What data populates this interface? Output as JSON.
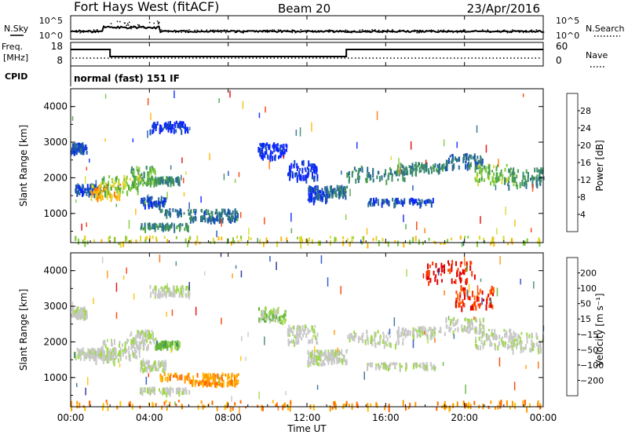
{
  "header": {
    "title": "Fort Hays West (fitACF)",
    "beam": "Beam 20",
    "date": "23/Apr/2016"
  },
  "summary_panels": {
    "nsky_label": "N.Sky",
    "nsky_ticks": [
      "10^5",
      "10^0"
    ],
    "nsearch_label": "N.Search",
    "nsearch_ticks": [
      "10^5",
      "10^0"
    ],
    "freq_label_1": "Freq.",
    "freq_label_2": "[MHz]",
    "freq_ticks": [
      "18",
      "8"
    ],
    "nave_label": "Nave",
    "nave_ticks": [
      "60",
      "0"
    ],
    "cpid_label": "CPID",
    "cpid_text": "normal (fast) 151 IF"
  },
  "chart_data": [
    {
      "type": "heatmap",
      "name_printed": "",
      "ylabel": "Slant Range [km]",
      "xlabel": "",
      "y_ticks": [
        "1000",
        "2000",
        "3000",
        "4000"
      ],
      "ylim": [
        180,
        4500
      ],
      "xlim_hours": [
        0,
        24
      ],
      "colorbar": {
        "label": "Power [dB]",
        "ticks": [
          "4",
          "8",
          "12",
          "16",
          "20",
          "24",
          "28"
        ],
        "colors": [
          "#0a24ff",
          "#1a50b4",
          "#2a6e91",
          "#3c8a6a",
          "#4ba448",
          "#7ec93a",
          "#d9d932",
          "#ffb600",
          "#ff7a00",
          "#ff3a00",
          "#e10000"
        ]
      },
      "regions": [
        {
          "t": [
            0.0,
            0.8
          ],
          "r": [
            2750,
            3000
          ],
          "level": 1
        },
        {
          "t": [
            0.2,
            1.5
          ],
          "r": [
            1600,
            1850
          ],
          "level": 1
        },
        {
          "t": [
            1.0,
            2.5
          ],
          "r": [
            1450,
            1850
          ],
          "level": 7
        },
        {
          "t": [
            1.5,
            3.5
          ],
          "r": [
            1600,
            2100
          ],
          "level": 5
        },
        {
          "t": [
            3.0,
            4.3
          ],
          "r": [
            1850,
            2350
          ],
          "level": 4
        },
        {
          "t": [
            3.5,
            4.8
          ],
          "r": [
            1250,
            1500
          ],
          "level": 1
        },
        {
          "t": [
            4.3,
            5.5
          ],
          "r": [
            1900,
            2050
          ],
          "level": 3
        },
        {
          "t": [
            4.0,
            6.0
          ],
          "r": [
            3350,
            3600
          ],
          "level": 0
        },
        {
          "t": [
            4.5,
            8.5
          ],
          "r": [
            1000,
            1150
          ],
          "level": 2
        },
        {
          "t": [
            6.0,
            8.5
          ],
          "r": [
            850,
            950
          ],
          "level": 2
        },
        {
          "t": [
            3.5,
            6.0
          ],
          "r": [
            600,
            750
          ],
          "level": 3
        },
        {
          "t": [
            9.5,
            11.0
          ],
          "r": [
            2600,
            3000
          ],
          "level": 0
        },
        {
          "t": [
            11.0,
            12.5
          ],
          "r": [
            2000,
            2500
          ],
          "level": 0
        },
        {
          "t": [
            12.0,
            13.0
          ],
          "r": [
            1400,
            1800
          ],
          "level": 1
        },
        {
          "t": [
            13.0,
            14.0
          ],
          "r": [
            1500,
            1800
          ],
          "level": 2
        },
        {
          "t": [
            14.0,
            17.0
          ],
          "r": [
            1950,
            2350
          ],
          "level": 3
        },
        {
          "t": [
            15.0,
            18.5
          ],
          "r": [
            1300,
            1450
          ],
          "level": 1
        },
        {
          "t": [
            16.5,
            19.0
          ],
          "r": [
            2200,
            2450
          ],
          "level": 3
        },
        {
          "t": [
            19.0,
            21.0
          ],
          "r": [
            2300,
            2700
          ],
          "level": 2
        },
        {
          "t": [
            20.5,
            22.5
          ],
          "r": [
            1900,
            2400
          ],
          "level": 5
        },
        {
          "t": [
            22.0,
            24.0
          ],
          "r": [
            1800,
            2300
          ],
          "level": 3
        },
        {
          "t": [
            0.0,
            24.0
          ],
          "r": [
            180,
            380
          ],
          "level": 6
        }
      ]
    },
    {
      "type": "heatmap",
      "name_printed": "",
      "ylabel": "Slant Range [km]",
      "xlabel": "Time UT",
      "x_ticks": [
        "00:00",
        "04:00",
        "08:00",
        "12:00",
        "16:00",
        "20:00",
        "00:00"
      ],
      "y_ticks": [
        "1000",
        "2000",
        "3000",
        "4000"
      ],
      "ylim": [
        180,
        4500
      ],
      "xlim_hours": [
        0,
        24
      ],
      "colorbar": {
        "label": "Velocity [m s⁻¹]",
        "ticks": [
          "200",
          "100",
          "50",
          "15",
          "−15",
          "−50",
          "−100",
          "−200"
        ],
        "colors": [
          "#1f2c8f",
          "#1f4cc4",
          "#2f6a9a",
          "#3c8a6a",
          "#62b43c",
          "#9ed84a",
          "#c8c8c8",
          "#c8c8c8",
          "#ffc000",
          "#ff9a00",
          "#ff6a00",
          "#ff3a00",
          "#e10000"
        ]
      },
      "regions": [
        {
          "t": [
            0.0,
            0.8
          ],
          "r": [
            2750,
            3000
          ],
          "level": 6
        },
        {
          "t": [
            0.2,
            1.5
          ],
          "r": [
            1600,
            1850
          ],
          "level": 6
        },
        {
          "t": [
            1.0,
            2.5
          ],
          "r": [
            1450,
            1850
          ],
          "level": 6
        },
        {
          "t": [
            1.5,
            3.5
          ],
          "r": [
            1600,
            2100
          ],
          "level": 6
        },
        {
          "t": [
            3.0,
            4.3
          ],
          "r": [
            1850,
            2350
          ],
          "level": 6
        },
        {
          "t": [
            3.5,
            4.8
          ],
          "r": [
            1250,
            1500
          ],
          "level": 6
        },
        {
          "t": [
            4.3,
            5.5
          ],
          "r": [
            1900,
            2050
          ],
          "level": 4
        },
        {
          "t": [
            4.0,
            6.0
          ],
          "r": [
            3350,
            3600
          ],
          "level": 6
        },
        {
          "t": [
            4.5,
            8.5
          ],
          "r": [
            1000,
            1150
          ],
          "level": 9
        },
        {
          "t": [
            6.0,
            8.5
          ],
          "r": [
            850,
            950
          ],
          "level": 9
        },
        {
          "t": [
            3.5,
            6.0
          ],
          "r": [
            600,
            750
          ],
          "level": 6
        },
        {
          "t": [
            9.5,
            11.0
          ],
          "r": [
            2600,
            3000
          ],
          "level": 5
        },
        {
          "t": [
            11.0,
            12.5
          ],
          "r": [
            2000,
            2500
          ],
          "level": 6
        },
        {
          "t": [
            12.0,
            13.0
          ],
          "r": [
            1400,
            1800
          ],
          "level": 6
        },
        {
          "t": [
            13.0,
            14.0
          ],
          "r": [
            1500,
            1800
          ],
          "level": 6
        },
        {
          "t": [
            14.0,
            17.0
          ],
          "r": [
            1950,
            2350
          ],
          "level": 6
        },
        {
          "t": [
            15.0,
            18.5
          ],
          "r": [
            1300,
            1450
          ],
          "level": 6
        },
        {
          "t": [
            16.5,
            19.0
          ],
          "r": [
            2200,
            2450
          ],
          "level": 6
        },
        {
          "t": [
            19.0,
            21.0
          ],
          "r": [
            2300,
            2700
          ],
          "level": 6
        },
        {
          "t": [
            20.5,
            22.5
          ],
          "r": [
            1900,
            2400
          ],
          "level": 6
        },
        {
          "t": [
            22.0,
            24.0
          ],
          "r": [
            1800,
            2300
          ],
          "level": 6
        },
        {
          "t": [
            0.0,
            24.0
          ],
          "r": [
            180,
            380
          ],
          "level": 9
        },
        {
          "t": [
            18.0,
            20.5
          ],
          "r": [
            3700,
            4300
          ],
          "level": 12
        },
        {
          "t": [
            19.5,
            21.5
          ],
          "r": [
            3000,
            3600
          ],
          "level": 11
        }
      ]
    }
  ]
}
